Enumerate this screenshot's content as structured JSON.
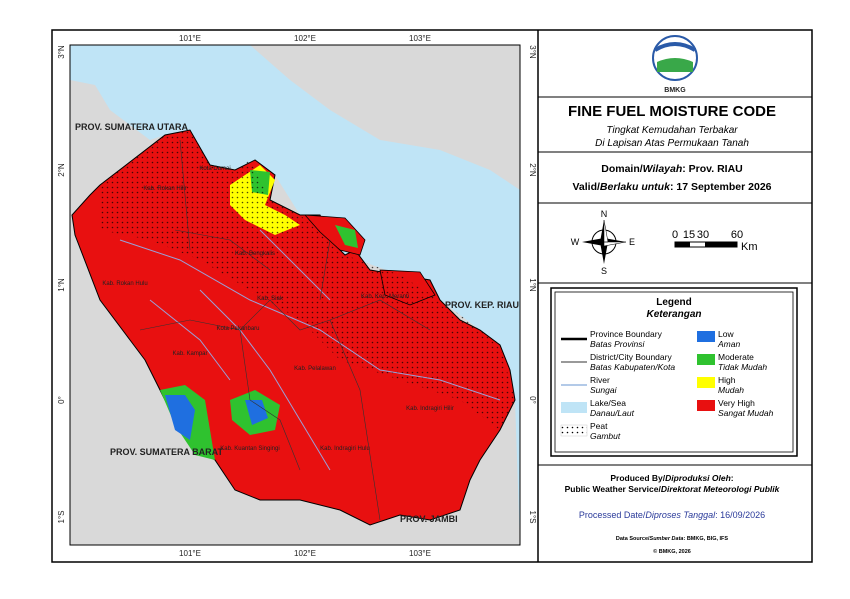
{
  "map": {
    "lon_labels": [
      "101°E",
      "102°E",
      "103°E"
    ],
    "lat_labels": [
      "3°N",
      "2°N",
      "1°N",
      "0°",
      "1°S"
    ],
    "region_labels": [
      "PROV. SUMATERA UTARA",
      "PROV. SUMATERA BARAT",
      "PROV. JAMBI",
      "PROV. KEP. RIAU"
    ],
    "regency_labels": [
      "Kab. Rokan Hilir",
      "Kota Dumai",
      "Kab. Bengkalis",
      "Kab. Rokan Hulu",
      "Kab. Siak",
      "Kab. Kep. Meranti",
      "Kota Pekanbaru",
      "Kab. Kampar",
      "Kab. Pelalawan",
      "Kab. Indragiri Hilir",
      "Kab. Kuantan Singingi",
      "Kab. Indragiri Hulu"
    ]
  },
  "panel": {
    "logo_text": "BMKG",
    "title": "FINE FUEL MOISTURE CODE",
    "subtitle_lines": [
      "Tingkat Kemudahan Terbakar",
      "Di Lapisan Atas Permukaan Tanah"
    ],
    "domain": {
      "label": "Domain/",
      "label_id": "Wilayah",
      "value": ": Prov. RIAU"
    },
    "valid": {
      "label": "Valid/",
      "label_id": "Berlaku untuk",
      "value": ": 17 September 2026"
    },
    "compass": {
      "n": "N",
      "e": "E",
      "s": "S",
      "w": "W"
    },
    "scale": {
      "ticks": [
        "0",
        "15",
        "30",
        "60"
      ],
      "unit": "Km"
    },
    "legend": {
      "title": "Legend",
      "subtitle": "Keterangan",
      "lines": [
        {
          "label": "Province Boundary",
          "label_id": "Batas Provinsi"
        },
        {
          "label": "District/City Boundary",
          "label_id": "Batas Kabupaten/Kota"
        },
        {
          "label": "River",
          "label_id": "Sungai"
        },
        {
          "label": "Lake/Sea",
          "label_id": "Danau/Laut"
        },
        {
          "label": "Peat",
          "label_id": "Gambut"
        }
      ],
      "classes": [
        {
          "label": "Low",
          "label_id": "Aman",
          "color": "#1f6fe0"
        },
        {
          "label": "Moderate",
          "label_id": "Tidak Mudah",
          "color": "#2fc22f"
        },
        {
          "label": "High",
          "label_id": "Mudah",
          "color": "#ffff00"
        },
        {
          "label": "Very High",
          "label_id": "Sangat Mudah",
          "color": "#e81010"
        }
      ]
    },
    "produced": {
      "label": "Produced By/",
      "label_id": "Diproduksi Oleh",
      "colon": ":",
      "org": "Public Weather Service/",
      "org_id": "Direktorat Meteorologi Publik"
    },
    "processed": {
      "label": "Processed Date/",
      "label_id": "Diproses Tanggal",
      "value": ": 16/09/2026"
    },
    "source": {
      "label": "Data Source/",
      "label_id": "Sumber Data",
      "value": ": BMKG, BIG, IFS"
    },
    "copyright": "© BMKG, 2026"
  }
}
